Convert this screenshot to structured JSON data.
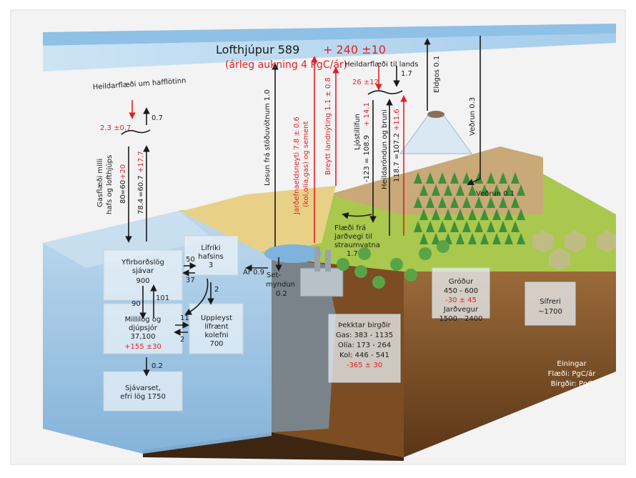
{
  "atmosphere": {
    "title": "Lofthjúpur 589",
    "increase": "+ 240 ±10",
    "annual": "(árleg aukning 4 PgC/ár)"
  },
  "ocean_exchange": {
    "title": "Heildarflæði um hafflötinn",
    "net_down": "2.3 ±0.7",
    "net_up": "0.7",
    "gas_label_1": "Gasflæði milli",
    "gas_label_2": "hafs og lofthjúps",
    "down_black": "80",
    "down_eq": "=60",
    "down_red": "+20",
    "up_black": "78.4",
    "up_eq": "=60.7",
    "up_red": "+17.7"
  },
  "land_exchange": {
    "title": "Heildarflæði til lands",
    "net_red": "26 ±12",
    "net_black": "1.7",
    "photo_label": "Ljóstillífun",
    "photo_black": "-123 = 108.9",
    "photo_red": "+ 14.1",
    "resp_label": "Heildaröndun og bruni",
    "resp_black": "118.7 =107.2",
    "resp_red": "+11.6"
  },
  "flux_labels": {
    "freshwater": "Losun frá stöðuvötnum 1.0",
    "fossil_1": "Jarðefnaeldsneyti 7.8 ± 0.6",
    "fossil_2": "(kol,olía,gas) og sement",
    "landuse": "Breytt landnýting 1.1 ± 0.8",
    "volcano": "Eldgos 0.1",
    "weathering_1": "Veðrun 0.3",
    "weathering_2": "Veðrun 0.1",
    "soil_1": "Flæði frá",
    "soil_2": "jarðvegi til",
    "soil_3": "straumvatna",
    "soil_4": "1.7",
    "rivers": "Ár 0.9",
    "sed_1": "Set-",
    "sed_2": "myndun",
    "sed_3": "0.2"
  },
  "ocean_boxes": {
    "surface_1": "Yfirborðslög",
    "surface_2": "sjávar",
    "surface_3": "900",
    "biota_1": "Lífríki",
    "biota_2": "hafsins",
    "biota_3": "3",
    "deep_1": "Millilög og",
    "deep_2": "djúpsjór",
    "deep_3": "37,100",
    "deep_4": "+155 ±30",
    "doc_1": "Uppleyst",
    "doc_2": "lífrænt",
    "doc_3": "kolefni",
    "doc_4": "700",
    "sed_1": "Sjávarset,",
    "sed_2": "efri lög 1750"
  },
  "ocean_arrows": {
    "a50": "50",
    "a37": "37",
    "a90": "90",
    "a101": "101",
    "a2a": "2",
    "a11": "11",
    "a2b": "2",
    "a02": "0.2"
  },
  "land_boxes": {
    "fossil_1": "Þekktar birgðir",
    "fossil_2": "Gas: 383 - 1135",
    "fossil_3": "Olía: 173 - 264",
    "fossil_4": "Kol: 446 - 541",
    "fossil_5": "-365 ± 30",
    "veg_1": "Gróður",
    "veg_2": "450 - 600",
    "veg_3": "-30 ± 45",
    "veg_4": "Jarðvegur",
    "veg_5": "1500 - 2400",
    "perma_1": "Sífreri",
    "perma_2": "~1700"
  },
  "units": {
    "title": "Einingar",
    "flux": "Flæði: PgC/ár",
    "stock": "Birgðir: PgC"
  },
  "colors": {
    "red": "#e31f26",
    "black": "#1a1a1a",
    "ocean": "#9fc6e4",
    "sky": "#bcd9ef",
    "grass": "#a6c84a",
    "soil": "#8b5a2b",
    "farm": "#e7cf7a"
  }
}
